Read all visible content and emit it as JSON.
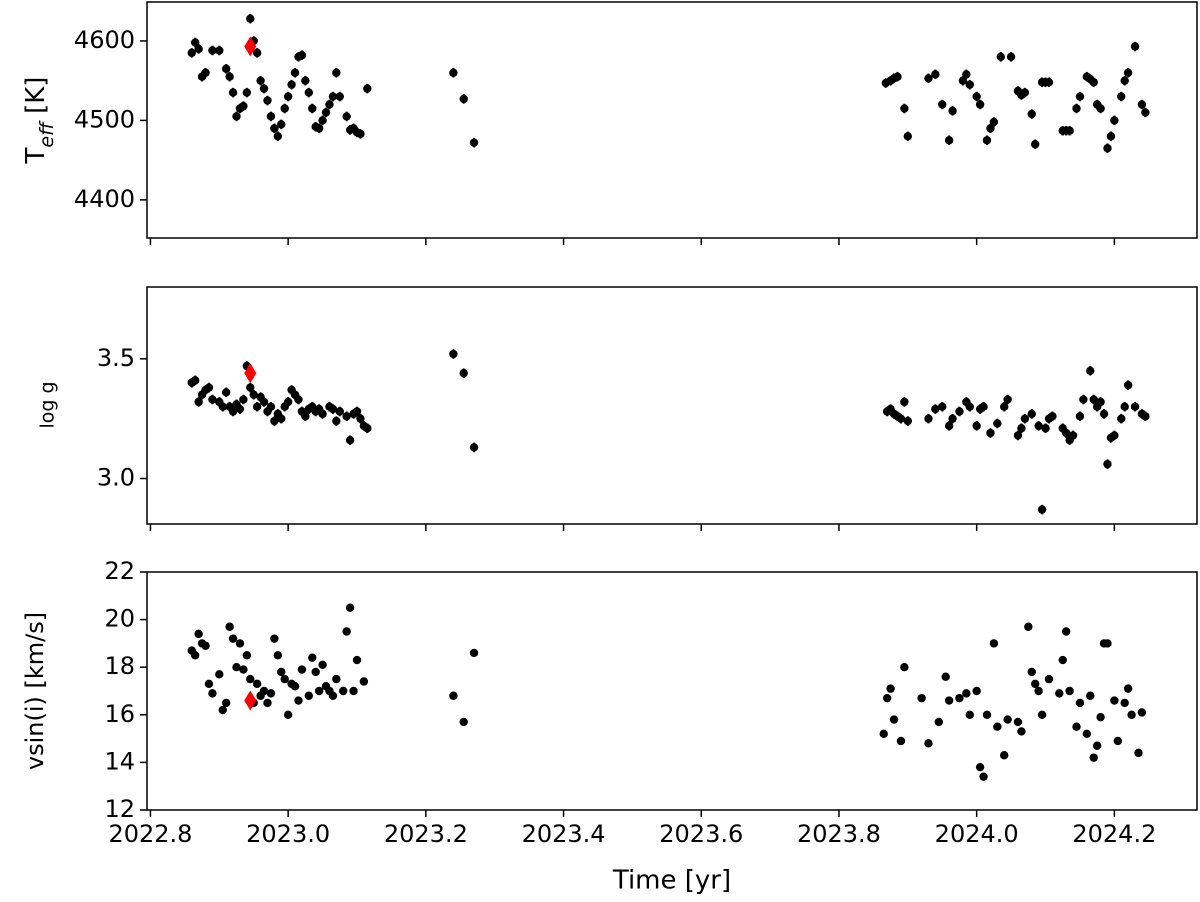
{
  "chart_data": [
    {
      "type": "scatter",
      "ylabel": [
        "T",
        "eff",
        " [K]"
      ],
      "ylim": [
        4352,
        4649
      ],
      "yticks": [
        4400,
        4500,
        4600
      ],
      "series": [
        {
          "color": "#000000",
          "marker": "circle",
          "yerr": 6,
          "x": [
            2022.86,
            2022.865,
            2022.87,
            2022.875,
            2022.88,
            2022.89,
            2022.9,
            2022.91,
            2022.915,
            2022.92,
            2022.925,
            2022.93,
            2022.935,
            2022.94,
            2022.945,
            2022.95,
            2022.955,
            2022.96,
            2022.965,
            2022.97,
            2022.975,
            2022.98,
            2022.985,
            2022.99,
            2022.995,
            2023.0,
            2023.005,
            2023.01,
            2023.015,
            2023.02,
            2023.025,
            2023.03,
            2023.035,
            2023.04,
            2023.045,
            2023.05,
            2023.055,
            2023.06,
            2023.065,
            2023.07,
            2023.075,
            2023.085,
            2023.09,
            2023.095,
            2023.1,
            2023.105,
            2023.115,
            2023.24,
            2023.255,
            2023.27,
            2023.868,
            2023.875,
            2023.88,
            2023.885,
            2023.895,
            2023.9,
            2023.93,
            2023.94,
            2023.95,
            2023.96,
            2023.965,
            2023.98,
            2023.985,
            2023.99,
            2024.0,
            2024.005,
            2024.015,
            2024.02,
            2024.025,
            2024.035,
            2024.05,
            2024.06,
            2024.065,
            2024.07,
            2024.08,
            2024.085,
            2024.095,
            2024.1,
            2024.105,
            2024.125,
            2024.13,
            2024.135,
            2024.145,
            2024.15,
            2024.16,
            2024.165,
            2024.17,
            2024.175,
            2024.18,
            2024.19,
            2024.195,
            2024.2,
            2024.21,
            2024.215,
            2024.22,
            2024.23,
            2024.24,
            2024.245
          ],
          "values": [
            4585,
            4598,
            4590,
            4555,
            4560,
            4588,
            4588,
            4565,
            4555,
            4535,
            4505,
            4515,
            4518,
            4535,
            4628,
            4600,
            4585,
            4550,
            4540,
            4525,
            4505,
            4490,
            4480,
            4495,
            4515,
            4530,
            4545,
            4560,
            4580,
            4582,
            4550,
            4535,
            4515,
            4492,
            4490,
            4500,
            4510,
            4520,
            4530,
            4560,
            4530,
            4505,
            4488,
            4490,
            4485,
            4483,
            4540,
            4560,
            4527,
            4472,
            4547,
            4550,
            4553,
            4555,
            4515,
            4480,
            4553,
            4558,
            4520,
            4475,
            4512,
            4550,
            4558,
            4545,
            4530,
            4520,
            4475,
            4490,
            4498,
            4580,
            4580,
            4537,
            4532,
            4535,
            4508,
            4470,
            4548,
            4548,
            4548,
            4487,
            4487,
            4487,
            4515,
            4530,
            4555,
            4552,
            4548,
            4520,
            4515,
            4465,
            4480,
            4500,
            4530,
            4550,
            4560,
            4593,
            4520,
            4510
          ]
        },
        {
          "color": "#ff0000",
          "marker": "diamond",
          "x": [
            2022.945
          ],
          "values": [
            4593
          ]
        }
      ]
    },
    {
      "type": "scatter",
      "ylabel": [
        "log g"
      ],
      "ylim": [
        2.81,
        3.8
      ],
      "yticks": [
        {
          "value": 3,
          "label": "3.0"
        },
        3.5
      ],
      "series": [
        {
          "color": "#000000",
          "marker": "circle",
          "yerr": 0.02,
          "x": [
            2022.86,
            2022.865,
            2022.87,
            2022.875,
            2022.88,
            2022.885,
            2022.89,
            2022.9,
            2022.905,
            2022.91,
            2022.915,
            2022.92,
            2022.925,
            2022.93,
            2022.935,
            2022.94,
            2022.945,
            2022.95,
            2022.955,
            2022.96,
            2022.965,
            2022.97,
            2022.975,
            2022.98,
            2022.985,
            2022.99,
            2022.995,
            2023.0,
            2023.005,
            2023.01,
            2023.015,
            2023.02,
            2023.025,
            2023.03,
            2023.035,
            2023.04,
            2023.045,
            2023.05,
            2023.06,
            2023.065,
            2023.07,
            2023.075,
            2023.085,
            2023.09,
            2023.095,
            2023.1,
            2023.105,
            2023.11,
            2023.115,
            2023.24,
            2023.255,
            2023.27,
            2023.87,
            2023.875,
            2023.88,
            2023.885,
            2023.89,
            2023.895,
            2023.9,
            2023.93,
            2023.94,
            2023.95,
            2023.96,
            2023.965,
            2023.975,
            2023.985,
            2023.99,
            2024.0,
            2024.005,
            2024.01,
            2024.02,
            2024.03,
            2024.04,
            2024.045,
            2024.06,
            2024.065,
            2024.07,
            2024.08,
            2024.09,
            2024.095,
            2024.1,
            2024.105,
            2024.11,
            2024.125,
            2024.13,
            2024.135,
            2024.14,
            2024.15,
            2024.155,
            2024.165,
            2024.17,
            2024.175,
            2024.18,
            2024.185,
            2024.19,
            2024.195,
            2024.2,
            2024.21,
            2024.215,
            2024.22,
            2024.23,
            2024.24,
            2024.245
          ],
          "values": [
            3.4,
            3.41,
            3.32,
            3.35,
            3.37,
            3.38,
            3.33,
            3.32,
            3.3,
            3.36,
            3.3,
            3.28,
            3.31,
            3.29,
            3.33,
            3.47,
            3.38,
            3.35,
            3.3,
            3.34,
            3.32,
            3.28,
            3.3,
            3.24,
            3.27,
            3.25,
            3.3,
            3.32,
            3.37,
            3.35,
            3.33,
            3.28,
            3.26,
            3.29,
            3.3,
            3.28,
            3.29,
            3.27,
            3.3,
            3.29,
            3.24,
            3.28,
            3.26,
            3.16,
            3.27,
            3.28,
            3.25,
            3.22,
            3.21,
            3.52,
            3.44,
            3.13,
            3.28,
            3.29,
            3.27,
            3.26,
            3.25,
            3.32,
            3.24,
            3.25,
            3.29,
            3.3,
            3.22,
            3.25,
            3.28,
            3.32,
            3.3,
            3.22,
            3.29,
            3.3,
            3.19,
            3.23,
            3.3,
            3.33,
            3.18,
            3.21,
            3.25,
            3.27,
            3.22,
            2.87,
            3.21,
            3.25,
            3.26,
            3.21,
            3.19,
            3.16,
            3.18,
            3.26,
            3.33,
            3.45,
            3.33,
            3.3,
            3.32,
            3.27,
            3.06,
            3.17,
            3.18,
            3.25,
            3.3,
            3.39,
            3.3,
            3.27,
            3.26
          ]
        },
        {
          "color": "#ff0000",
          "marker": "diamond",
          "x": [
            2022.945
          ],
          "values": [
            3.44
          ]
        }
      ]
    },
    {
      "type": "scatter",
      "ylabel": [
        "vsin(i) [km/s]"
      ],
      "xlabel": "Time [yr]",
      "xlim": [
        2022.795,
        2024.32
      ],
      "xticks": [
        2022.8,
        {
          "value": 2023,
          "label": "2023.0"
        },
        2023.2,
        2023.4,
        2023.6,
        2023.8,
        {
          "value": 2024,
          "label": "2024.0"
        },
        2024.2
      ],
      "ylim": [
        12,
        22
      ],
      "yticks": [
        12,
        14,
        16,
        18,
        20,
        22
      ],
      "series": [
        {
          "color": "#000000",
          "marker": "circle",
          "x": [
            2022.86,
            2022.865,
            2022.87,
            2022.875,
            2022.88,
            2022.885,
            2022.89,
            2022.9,
            2022.905,
            2022.91,
            2022.915,
            2022.92,
            2022.925,
            2022.93,
            2022.935,
            2022.94,
            2022.945,
            2022.95,
            2022.955,
            2022.96,
            2022.965,
            2022.97,
            2022.975,
            2022.98,
            2022.985,
            2022.99,
            2022.995,
            2023.0,
            2023.005,
            2023.01,
            2023.015,
            2023.02,
            2023.03,
            2023.035,
            2023.04,
            2023.045,
            2023.05,
            2023.055,
            2023.06,
            2023.065,
            2023.07,
            2023.08,
            2023.085,
            2023.09,
            2023.095,
            2023.1,
            2023.11,
            2023.24,
            2023.255,
            2023.27,
            2023.865,
            2023.87,
            2023.875,
            2023.88,
            2023.89,
            2023.895,
            2023.92,
            2023.93,
            2023.945,
            2023.955,
            2023.96,
            2023.975,
            2023.985,
            2023.99,
            2024.0,
            2024.005,
            2024.01,
            2024.015,
            2024.025,
            2024.03,
            2024.04,
            2024.045,
            2024.06,
            2024.065,
            2024.075,
            2024.08,
            2024.085,
            2024.09,
            2024.095,
            2024.105,
            2024.12,
            2024.125,
            2024.13,
            2024.135,
            2024.145,
            2024.15,
            2024.16,
            2024.165,
            2024.17,
            2024.175,
            2024.18,
            2024.185,
            2024.19,
            2024.2,
            2024.205,
            2024.215,
            2024.22,
            2024.225,
            2024.235,
            2024.24
          ],
          "values": [
            18.7,
            18.5,
            19.4,
            19.0,
            18.9,
            17.3,
            16.9,
            17.7,
            16.2,
            16.5,
            19.7,
            19.2,
            18.0,
            19.0,
            17.9,
            18.5,
            17.5,
            16.5,
            17.3,
            16.8,
            17.0,
            16.5,
            16.9,
            19.2,
            18.5,
            17.8,
            17.5,
            16.0,
            17.3,
            17.2,
            16.6,
            17.9,
            16.8,
            18.4,
            17.8,
            17.0,
            18.1,
            17.2,
            17.0,
            16.8,
            17.5,
            17.0,
            19.5,
            20.5,
            17.0,
            18.3,
            17.4,
            16.8,
            15.7,
            18.6,
            15.2,
            16.7,
            17.1,
            15.8,
            14.9,
            18.0,
            16.7,
            14.8,
            15.7,
            17.6,
            16.6,
            16.7,
            16.9,
            16.0,
            17.0,
            13.8,
            13.4,
            16.0,
            19.0,
            15.5,
            14.3,
            15.8,
            15.7,
            15.3,
            19.7,
            17.8,
            17.3,
            17.0,
            16.0,
            17.5,
            16.9,
            18.3,
            19.5,
            17.0,
            15.5,
            16.5,
            15.2,
            16.8,
            14.2,
            14.7,
            15.9,
            19.0,
            19.0,
            16.6,
            14.9,
            16.5,
            17.1,
            16.0,
            14.4,
            16.1
          ]
        },
        {
          "color": "#ff0000",
          "marker": "diamond",
          "x": [
            2022.945
          ],
          "values": [
            16.6
          ]
        }
      ]
    }
  ]
}
